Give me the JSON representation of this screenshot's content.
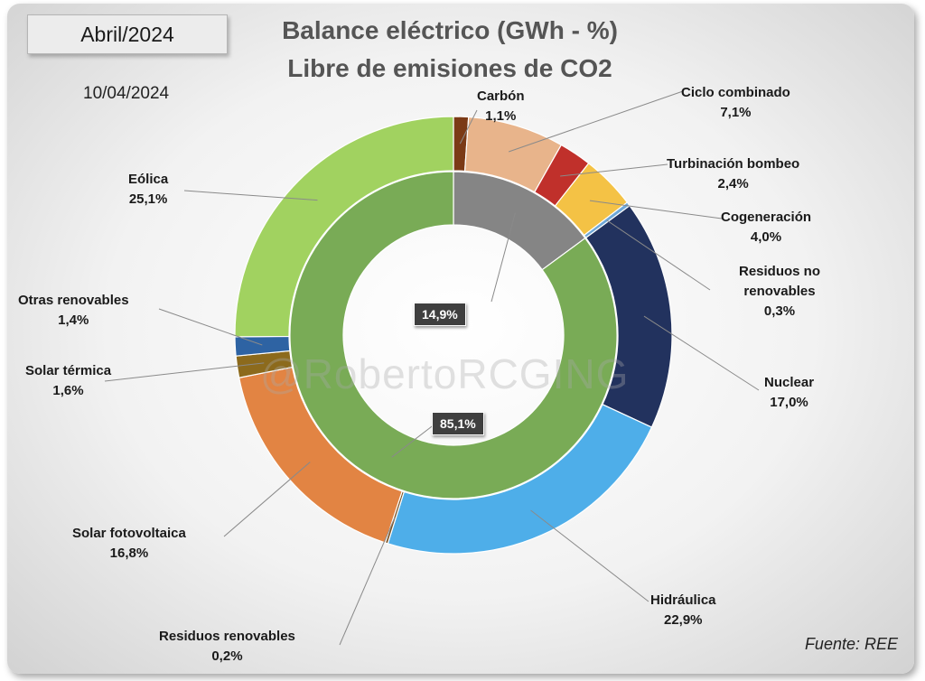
{
  "header": {
    "month": "Abril/2024",
    "date": "10/04/2024",
    "title_line1": "Balance eléctrico (GWh - %)",
    "title_line2": "Libre de emisiones de CO2"
  },
  "footer": {
    "source": "Fuente: REE"
  },
  "watermark": "@RobertoRCGING",
  "chart_data": {
    "type": "donut",
    "title": "Balance eléctrico (GWh - %)",
    "subtitle": "Libre de emisiones de CO2",
    "outer_ring": [
      {
        "name": "Carbón",
        "value": 1.1,
        "label": "1,1%",
        "color": "#7b3a16"
      },
      {
        "name": "Ciclo combinado",
        "value": 7.1,
        "label": "7,1%",
        "color": "#e8b48b"
      },
      {
        "name": "Turbinación bombeo",
        "value": 2.4,
        "label": "2,4%",
        "color": "#c0302b"
      },
      {
        "name": "Cogeneración",
        "value": 4.0,
        "label": "4,0%",
        "color": "#f4c245"
      },
      {
        "name": "Residuos no renovables",
        "value": 0.3,
        "label": "0,3%",
        "color": "#6fa8d8"
      },
      {
        "name": "Nuclear",
        "value": 17.0,
        "label": "17,0%",
        "color": "#22325e"
      },
      {
        "name": "Hidráulica",
        "value": 22.9,
        "label": "22,9%",
        "color": "#4eaee9"
      },
      {
        "name": "Residuos renovables",
        "value": 0.2,
        "label": "0,2%",
        "color": "#7a5224"
      },
      {
        "name": "Solar fotovoltaica",
        "value": 16.8,
        "label": "16,8%",
        "color": "#e28443"
      },
      {
        "name": "Solar térmica",
        "value": 1.6,
        "label": "1,6%",
        "color": "#8c6a1c"
      },
      {
        "name": "Otras renovables",
        "value": 1.4,
        "label": "1,4%",
        "color": "#2e63a3"
      },
      {
        "name": "Eólica",
        "value": 25.1,
        "label": "25,1%",
        "color": "#a1d260"
      }
    ],
    "inner_ring": [
      {
        "value": 14.9,
        "label": "14,9%",
        "color": "#858585"
      },
      {
        "value": 85.1,
        "label": "85,1%",
        "color": "#79ab56"
      }
    ]
  }
}
